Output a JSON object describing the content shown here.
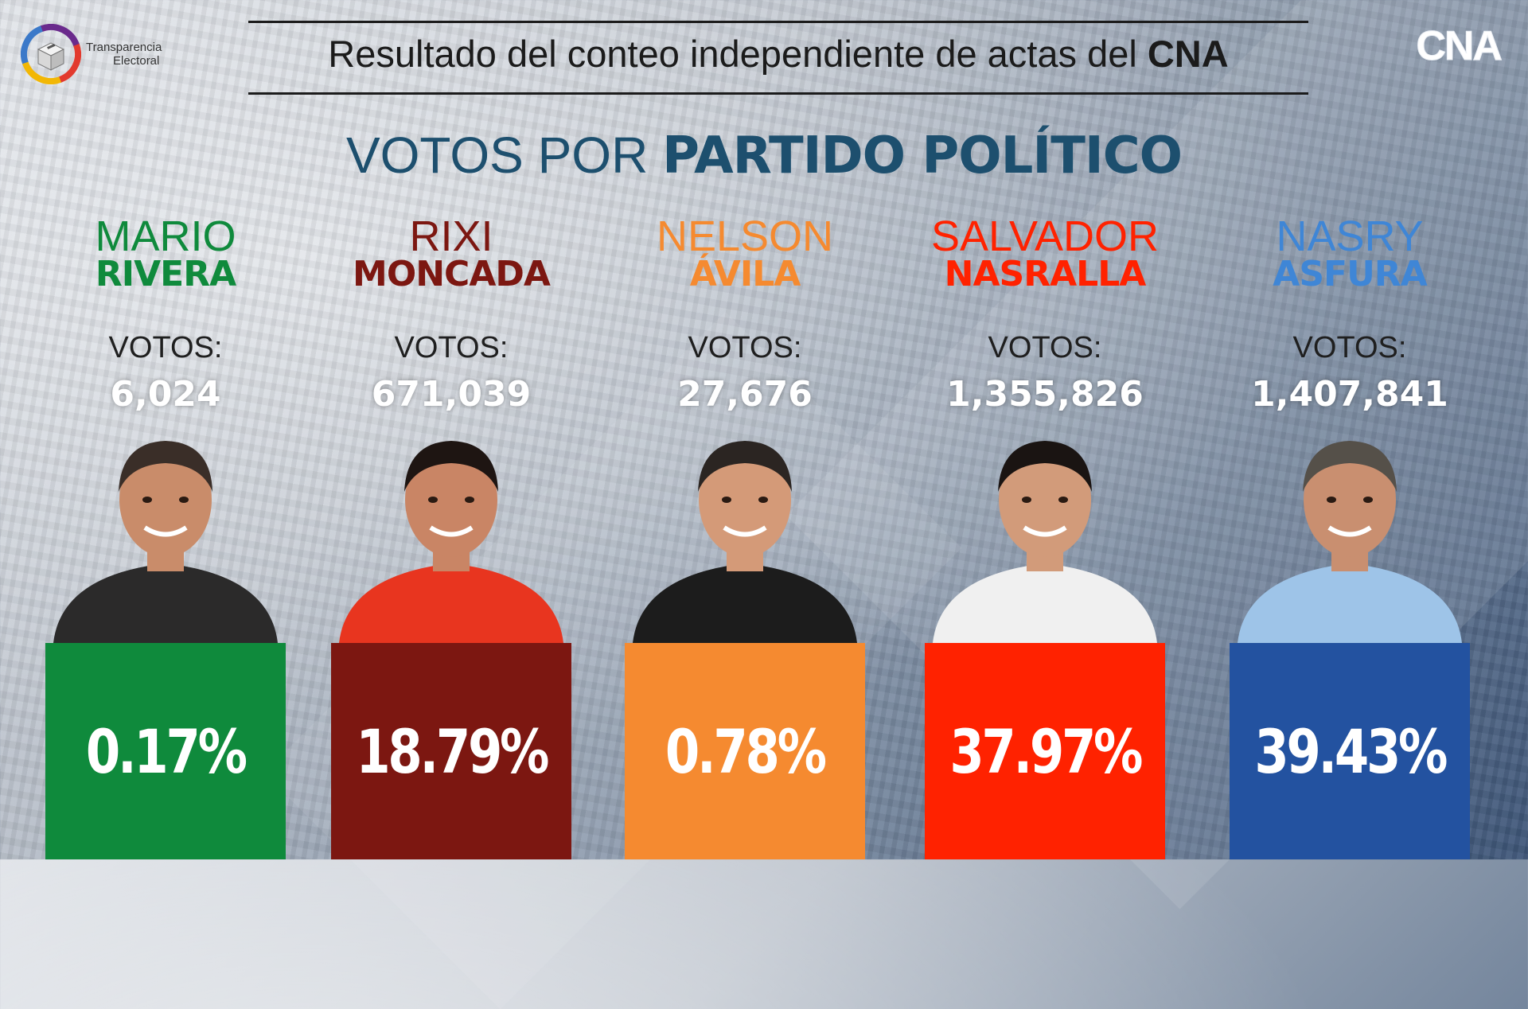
{
  "header": {
    "logo_line1": "Transparencia",
    "logo_line2": "Electoral",
    "title_prefix": "Resultado del conteo independiente de actas del ",
    "title_bold": "CNA",
    "brand": "CNA"
  },
  "subtitle": {
    "light": "VOTOS POR ",
    "bold": "PARTIDO POLÍTICO"
  },
  "votes_label": "VOTOS:",
  "chart_data": {
    "type": "table",
    "title": "Resultado del conteo independiente de actas del CNA",
    "subtitle": "VOTOS POR PARTIDO POLÍTICO",
    "candidates": [
      {
        "first": "MARIO",
        "last": "RIVERA",
        "votes": "6,024",
        "votes_value": 6024,
        "percent": "0.17%",
        "percent_value": 0.17,
        "color": "#0f8a3c",
        "photo_icon": "candidate-photo"
      },
      {
        "first": "RIXI",
        "last": "MONCADA",
        "votes": "671,039",
        "votes_value": 671039,
        "percent": "18.79%",
        "percent_value": 18.79,
        "color": "#7c1711",
        "photo_icon": "candidate-photo"
      },
      {
        "first": "NELSON",
        "last": "ÁVILA",
        "votes": "27,676",
        "votes_value": 27676,
        "percent": "0.78%",
        "percent_value": 0.78,
        "color": "#f58a30",
        "photo_icon": "candidate-photo"
      },
      {
        "first": "SALVADOR",
        "last": "NASRALLA",
        "votes": "1,355,826",
        "votes_value": 1355826,
        "percent": "37.97%",
        "percent_value": 37.97,
        "color": "#ff2200",
        "photo_icon": "candidate-photo"
      },
      {
        "first": "NASRY",
        "last": "ASFURA",
        "votes": "1,407,841",
        "votes_value": 1407841,
        "percent": "39.43%",
        "percent_value": 39.43,
        "color": "#2352a0",
        "name_color": "#3f86d6",
        "photo_icon": "candidate-photo"
      }
    ]
  }
}
